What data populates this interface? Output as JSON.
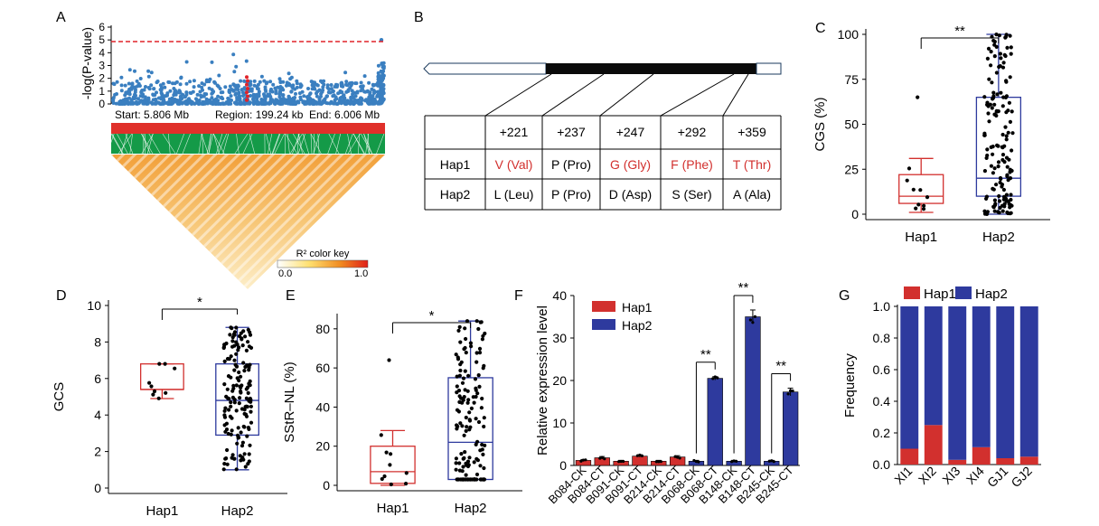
{
  "colors": {
    "hap1": "#d2302e",
    "hap2": "#2e3a9e",
    "manhattan": "#3a7fc0",
    "threshold": "#e0242a",
    "ld_green": "#149a48",
    "ld_red": "#e0302a",
    "gene_cds": "#0a0a0a"
  },
  "panels": {
    "A": {
      "letter": "A",
      "ylabel": "-log(P-value)",
      "y_ticks": [
        "0",
        "1",
        "2",
        "3",
        "4",
        "5",
        "6"
      ],
      "threshold": 5,
      "start_label": "Start: 5.806 Mb",
      "region_label": "Region: 199.24 kb",
      "end_label": "End: 6.006 Mb",
      "color_key_title": "R² color key",
      "color_key_min": "0.0",
      "color_key_max": "1.0"
    },
    "B": {
      "letter": "B",
      "positions": [
        "+221",
        "+237",
        "+247",
        "+292",
        "+359"
      ],
      "rows": [
        {
          "hap": "Hap1",
          "cells": [
            "V (Val)",
            "P (Pro)",
            "G (Gly)",
            "F (Phe)",
            "T (Thr)"
          ],
          "highlight": [
            true,
            false,
            true,
            true,
            true
          ]
        },
        {
          "hap": "Hap2",
          "cells": [
            "L (Leu)",
            "P (Pro)",
            "D (Asp)",
            "S (Ser)",
            "A (Ala)"
          ],
          "highlight": [
            false,
            false,
            false,
            false,
            false
          ]
        }
      ]
    },
    "C": {
      "letter": "C",
      "ylabel": "CGS (%)",
      "sig": "**",
      "ticks": [
        "0",
        "25",
        "50",
        "75",
        "100"
      ]
    },
    "D": {
      "letter": "D",
      "ylabel": "GCS",
      "sig": "*",
      "ticks": [
        "0",
        "2",
        "4",
        "6",
        "8",
        "10"
      ]
    },
    "E": {
      "letter": "E",
      "ylabel": "SStR–NL (%)",
      "sig": "*",
      "ticks": [
        "0",
        "20",
        "40",
        "60",
        "80"
      ]
    },
    "F": {
      "letter": "F",
      "ylabel": "Relative expression level",
      "ticks": [
        "0",
        "10",
        "20",
        "30",
        "40"
      ],
      "legend": [
        "Hap1",
        "Hap2"
      ],
      "sig": [
        "**",
        "**",
        "**"
      ]
    },
    "G": {
      "letter": "G",
      "ylabel": "Frequency",
      "ticks": [
        "0.0",
        "0.2",
        "0.4",
        "0.6",
        "0.8",
        "1.0"
      ],
      "legend": [
        "Hap1",
        "Hap2"
      ]
    }
  },
  "chart_data": [
    {
      "type": "scatter",
      "panel": "A",
      "ylabel": "-log(P-value)",
      "xlim": [
        5.806,
        6.006
      ],
      "ylim": [
        0,
        6
      ],
      "threshold": 5,
      "note_values": "approximate Manhattan plot of SNP associations; dense points below y=3, a few above"
    },
    {
      "type": "box",
      "panel": "C",
      "ylabel": "CGS (%)",
      "categories": [
        "Hap1",
        "Hap2"
      ],
      "ylim": [
        0,
        100
      ],
      "boxes": [
        {
          "name": "Hap1",
          "whisker_low": 1,
          "q1": 6,
          "median": 10,
          "q3": 22,
          "whisker_high": 31,
          "outliers": [
            65
          ]
        },
        {
          "name": "Hap2",
          "whisker_low": 0,
          "q1": 10,
          "median": 20,
          "q3": 65,
          "whisker_high": 100,
          "outliers": []
        }
      ],
      "significance": "**"
    },
    {
      "type": "box",
      "panel": "D",
      "ylabel": "GCS",
      "categories": [
        "Hap1",
        "Hap2"
      ],
      "ylim": [
        0,
        10
      ],
      "boxes": [
        {
          "name": "Hap1",
          "whisker_low": 4.9,
          "q1": 5.4,
          "median": 5.4,
          "q3": 6.8,
          "whisker_high": 6.8,
          "outliers": []
        },
        {
          "name": "Hap2",
          "whisker_low": 1.0,
          "q1": 2.9,
          "median": 4.8,
          "q3": 6.8,
          "whisker_high": 8.8,
          "outliers": []
        }
      ],
      "significance": "*"
    },
    {
      "type": "box",
      "panel": "E",
      "ylabel": "SStR–NL (%)",
      "categories": [
        "Hap1",
        "Hap2"
      ],
      "ylim": [
        0,
        85
      ],
      "boxes": [
        {
          "name": "Hap1",
          "whisker_low": 0,
          "q1": 1,
          "median": 7,
          "q3": 20,
          "whisker_high": 28,
          "outliers": [
            64
          ]
        },
        {
          "name": "Hap2",
          "whisker_low": 3,
          "q1": 3,
          "median": 22,
          "q3": 55,
          "whisker_high": 84,
          "outliers": []
        }
      ],
      "significance": "*"
    },
    {
      "type": "bar",
      "panel": "F",
      "ylabel": "Relative expression level",
      "ylim": [
        0,
        40
      ],
      "categories": [
        "B084-CK",
        "B084-CT",
        "B091-CK",
        "B091-CT",
        "B214-CK",
        "B214-CT",
        "B068-CK",
        "B068-CT",
        "B148-CK",
        "B148-CT",
        "B245-CK",
        "B245-CT"
      ],
      "values": [
        1.2,
        1.8,
        1.0,
        2.2,
        1.0,
        2.0,
        1.0,
        20.5,
        1.0,
        35.0,
        1.0,
        17.3
      ],
      "errors": [
        0.2,
        0.3,
        0.2,
        0.3,
        0.2,
        0.3,
        0.2,
        0.4,
        0.2,
        1.6,
        0.2,
        0.9
      ],
      "haplotype": [
        "Hap1",
        "Hap1",
        "Hap1",
        "Hap1",
        "Hap1",
        "Hap1",
        "Hap2",
        "Hap2",
        "Hap2",
        "Hap2",
        "Hap2",
        "Hap2"
      ],
      "series": [
        {
          "name": "Hap1"
        },
        {
          "name": "Hap2"
        }
      ]
    },
    {
      "type": "bar",
      "panel": "G",
      "ylabel": "Frequency",
      "ylim": [
        0,
        1.0
      ],
      "categories": [
        "XI1",
        "XI2",
        "XI3",
        "XI4",
        "GJ1",
        "GJ2"
      ],
      "series": [
        {
          "name": "Hap1",
          "values": [
            0.1,
            0.25,
            0.03,
            0.11,
            0.04,
            0.05
          ]
        },
        {
          "name": "Hap2",
          "values": [
            0.9,
            0.75,
            0.97,
            0.89,
            0.96,
            0.95
          ]
        }
      ],
      "stacked": true
    }
  ]
}
